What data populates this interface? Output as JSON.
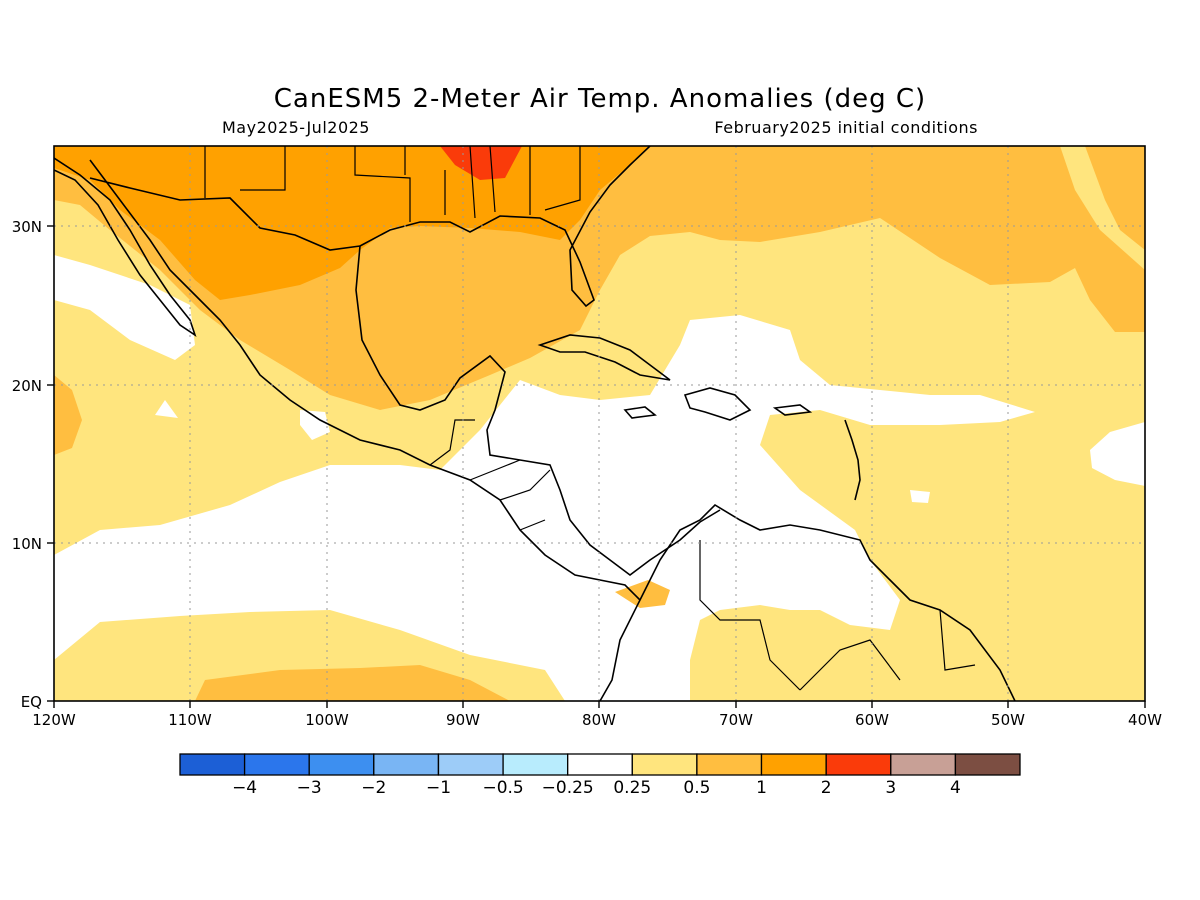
{
  "header": {
    "title": "CanESM5 2-Meter Air Temp. Anomalies (deg C)",
    "period": "May2025-Jul2025",
    "init": "February2025 initial conditions"
  },
  "axes": {
    "lon_labels": [
      "120W",
      "110W",
      "100W",
      "90W",
      "80W",
      "70W",
      "60W",
      "50W",
      "40W"
    ],
    "lat_labels": [
      "EQ",
      "10N",
      "20N",
      "30N"
    ],
    "lon_range": [
      -120,
      -40
    ],
    "lat_range": [
      0,
      35
    ],
    "grid": "dotted"
  },
  "legend": {
    "placement": "bottom",
    "colors": [
      "#1c5fd6",
      "#2b76ec",
      "#3d8ff0",
      "#79b5f4",
      "#9dccf8",
      "#b8ecfd",
      "#ffffff",
      "#ffe57e",
      "#ffbe40",
      "#ffa100",
      "#fa3b0a",
      "#c8a096",
      "#7c4e42"
    ],
    "labels": [
      "-4",
      "-3",
      "-2",
      "-1",
      "-0.5",
      "-0.25",
      "0.25",
      "0.5",
      "1",
      "2",
      "3",
      "4"
    ]
  }
}
